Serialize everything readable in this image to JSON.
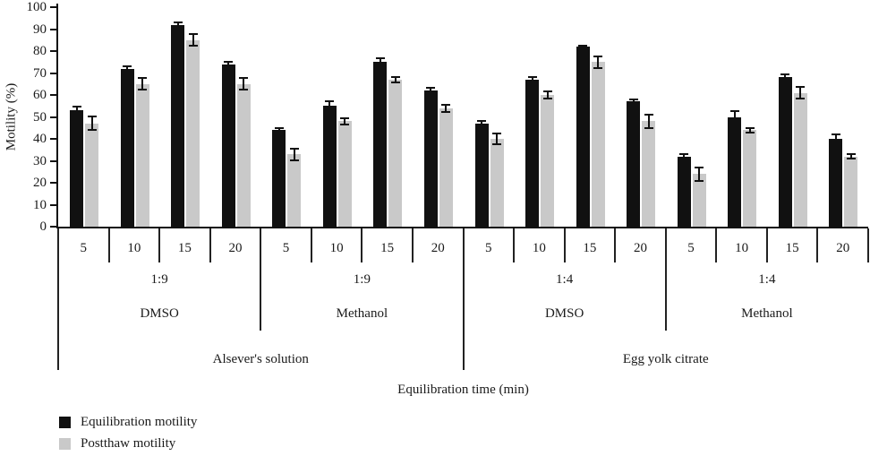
{
  "chart_data": {
    "type": "bar",
    "title": "",
    "ylabel": "Motility (%)",
    "xlabel": "Equilibration time (min)",
    "ylim": [
      0,
      100
    ],
    "ytick_step": 10,
    "yticks": [
      0,
      10,
      20,
      30,
      40,
      50,
      60,
      70,
      80,
      90,
      100
    ],
    "grid": false,
    "legend_position": "bottom-left",
    "bar_colors": {
      "equilibration": "#111111",
      "postthaw": "#c9c9c9"
    },
    "series": [
      {
        "name": "Equilibration motility",
        "color": "#111111"
      },
      {
        "name": "Postthaw motility",
        "color": "#c9c9c9"
      }
    ],
    "groups": [
      {
        "solution": "Alsever's solution",
        "ratio": "1:9",
        "cryoprotectant": "DMSO",
        "times": [
          "5",
          "10",
          "15",
          "20"
        ],
        "equilibration": [
          53,
          72,
          92,
          74
        ],
        "equilibration_err": [
          2,
          1.5,
          1.5,
          1.5
        ],
        "postthaw": [
          47,
          65,
          85,
          65
        ],
        "postthaw_err": [
          3.5,
          3,
          3,
          3
        ]
      },
      {
        "solution": "Alsever's solution",
        "ratio": "1:9",
        "cryoprotectant": "Methanol",
        "times": [
          "5",
          "10",
          "15",
          "20"
        ],
        "equilibration": [
          44,
          55,
          75,
          62
        ],
        "equilibration_err": [
          1.5,
          2.5,
          2,
          1.5
        ],
        "postthaw": [
          33,
          48,
          67,
          54
        ],
        "postthaw_err": [
          3,
          2,
          1.5,
          2
        ]
      },
      {
        "solution": "Egg yolk citrate",
        "ratio": "1:4",
        "cryoprotectant": "DMSO",
        "times": [
          "5",
          "10",
          "15",
          "20"
        ],
        "equilibration": [
          47,
          67,
          82,
          57
        ],
        "equilibration_err": [
          1.5,
          1.5,
          1,
          1.5
        ],
        "postthaw": [
          40,
          60,
          75,
          48
        ],
        "postthaw_err": [
          3,
          2,
          3,
          3.5
        ]
      },
      {
        "solution": "Egg yolk citrate",
        "ratio": "1:4",
        "cryoprotectant": "Methanol",
        "times": [
          "5",
          "10",
          "15",
          "20"
        ],
        "equilibration": [
          32,
          50,
          68,
          40
        ],
        "equilibration_err": [
          1.5,
          3,
          2,
          2.5
        ],
        "postthaw": [
          24,
          44,
          61,
          32
        ],
        "postthaw_err": [
          3.5,
          1.5,
          3,
          1.5
        ]
      }
    ]
  }
}
